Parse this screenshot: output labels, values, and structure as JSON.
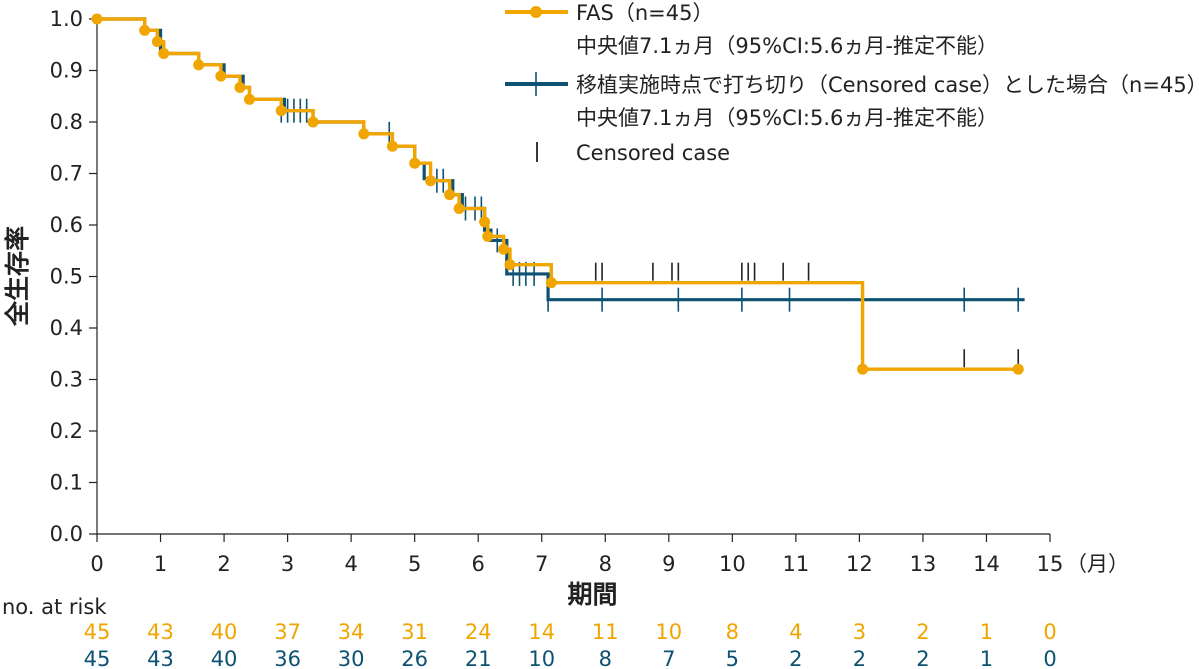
{
  "chart_data": {
    "type": "line",
    "title": "",
    "xlabel": "期間",
    "xunit": "（月）",
    "ylabel": "全生存率",
    "xlim": [
      0,
      15
    ],
    "ylim": [
      0,
      1.0
    ],
    "x_ticks": [
      0,
      1,
      2,
      3,
      4,
      5,
      6,
      7,
      8,
      9,
      10,
      11,
      12,
      13,
      14,
      15
    ],
    "x_tick_labels": [
      "0",
      "1",
      "2",
      "3",
      "4",
      "5",
      "6",
      "7",
      "8",
      "9",
      "10",
      "11",
      "12",
      "13",
      "14",
      "15"
    ],
    "y_ticks": [
      0,
      0.1,
      0.2,
      0.3,
      0.4,
      0.5,
      0.6,
      0.7,
      0.8,
      0.9,
      1.0
    ],
    "y_tick_labels": [
      "0.0",
      "0.1",
      "0.2",
      "0.3",
      "0.4",
      "0.5",
      "0.6",
      "0.7",
      "0.8",
      "0.9",
      "1.0"
    ],
    "grid": false,
    "legend_position": "top-right",
    "series": [
      {
        "name": "FAS（n=45）",
        "note": "中央値7.1ヵ月（95%CI:5.6ヵ月-推定不能）",
        "color": "#f0a500",
        "marker": "circle",
        "steps": [
          [
            0,
            1.0
          ],
          [
            0.75,
            0.978
          ],
          [
            0.95,
            0.956
          ],
          [
            1.05,
            0.933
          ],
          [
            1.6,
            0.911
          ],
          [
            1.95,
            0.889
          ],
          [
            2.25,
            0.867
          ],
          [
            2.4,
            0.844
          ],
          [
            2.9,
            0.822
          ],
          [
            3.4,
            0.8
          ],
          [
            4.2,
            0.777
          ],
          [
            4.65,
            0.753
          ],
          [
            5.0,
            0.72
          ],
          [
            5.25,
            0.686
          ],
          [
            5.55,
            0.659
          ],
          [
            5.7,
            0.632
          ],
          [
            6.1,
            0.606
          ],
          [
            6.15,
            0.578
          ],
          [
            6.4,
            0.553
          ],
          [
            6.5,
            0.523
          ],
          [
            7.15,
            0.488
          ],
          [
            12.05,
            0.32
          ],
          [
            14.5,
            0.32
          ]
        ],
        "markers_x": [
          0,
          0.75,
          0.95,
          1.05,
          1.6,
          1.95,
          2.25,
          2.4,
          2.9,
          3.4,
          4.2,
          4.65,
          5.0,
          5.25,
          5.55,
          5.7,
          6.1,
          6.15,
          6.4,
          6.5,
          7.15,
          12.05,
          14.5
        ],
        "censors": [
          {
            "x": 7.85,
            "y": 0.488
          },
          {
            "x": 7.95,
            "y": 0.488
          },
          {
            "x": 8.75,
            "y": 0.488
          },
          {
            "x": 9.05,
            "y": 0.488
          },
          {
            "x": 9.15,
            "y": 0.488
          },
          {
            "x": 10.15,
            "y": 0.488
          },
          {
            "x": 10.25,
            "y": 0.488
          },
          {
            "x": 10.35,
            "y": 0.488
          },
          {
            "x": 10.8,
            "y": 0.488
          },
          {
            "x": 11.2,
            "y": 0.488
          },
          {
            "x": 13.65,
            "y": 0.32
          },
          {
            "x": 14.5,
            "y": 0.32
          }
        ]
      },
      {
        "name": "移植実施時点で打ち切り（Censored case）とした場合（n=45）",
        "note": "中央値7.1ヵ月（95%CI:5.6ヵ月-推定不能）",
        "color": "#0e5273",
        "marker": "cross",
        "steps": [
          [
            0,
            1.0
          ],
          [
            0.75,
            0.978
          ],
          [
            1.0,
            0.933
          ],
          [
            1.6,
            0.911
          ],
          [
            2.0,
            0.889
          ],
          [
            2.3,
            0.867
          ],
          [
            2.4,
            0.844
          ],
          [
            2.95,
            0.822
          ],
          [
            3.4,
            0.8
          ],
          [
            4.2,
            0.777
          ],
          [
            4.65,
            0.753
          ],
          [
            5.0,
            0.72
          ],
          [
            5.15,
            0.69
          ],
          [
            5.25,
            0.686
          ],
          [
            5.6,
            0.659
          ],
          [
            5.75,
            0.632
          ],
          [
            6.1,
            0.59
          ],
          [
            6.2,
            0.57
          ],
          [
            6.45,
            0.505
          ],
          [
            7.1,
            0.455
          ],
          [
            14.6,
            0.455
          ]
        ],
        "censors": [
          {
            "x": 2.9,
            "y": 0.822
          },
          {
            "x": 3.0,
            "y": 0.822
          },
          {
            "x": 3.1,
            "y": 0.822
          },
          {
            "x": 3.2,
            "y": 0.822
          },
          {
            "x": 3.3,
            "y": 0.822
          },
          {
            "x": 4.6,
            "y": 0.777
          },
          {
            "x": 5.35,
            "y": 0.686
          },
          {
            "x": 5.45,
            "y": 0.686
          },
          {
            "x": 5.8,
            "y": 0.632
          },
          {
            "x": 5.95,
            "y": 0.632
          },
          {
            "x": 6.05,
            "y": 0.632
          },
          {
            "x": 6.3,
            "y": 0.57
          },
          {
            "x": 6.55,
            "y": 0.505
          },
          {
            "x": 6.65,
            "y": 0.505
          },
          {
            "x": 6.75,
            "y": 0.505
          },
          {
            "x": 6.88,
            "y": 0.505
          },
          {
            "x": 7.1,
            "y": 0.455
          },
          {
            "x": 7.95,
            "y": 0.455
          },
          {
            "x": 9.15,
            "y": 0.455
          },
          {
            "x": 10.15,
            "y": 0.455
          },
          {
            "x": 10.9,
            "y": 0.455
          },
          {
            "x": 13.65,
            "y": 0.455
          },
          {
            "x": 14.5,
            "y": 0.455
          }
        ]
      }
    ],
    "legend_censored_label": "Censored case",
    "risk_table": {
      "title": "no. at risk",
      "times": [
        0,
        1,
        2,
        3,
        4,
        5,
        6,
        7,
        8,
        9,
        10,
        11,
        12,
        13,
        14,
        15
      ],
      "rows": [
        {
          "color": "#f0a500",
          "values": [
            "45",
            "43",
            "40",
            "37",
            "34",
            "31",
            "24",
            "14",
            "11",
            "10",
            "8",
            "4",
            "3",
            "2",
            "1",
            "0"
          ]
        },
        {
          "color": "#0e5273",
          "values": [
            "45",
            "43",
            "40",
            "36",
            "30",
            "26",
            "21",
            "10",
            "8",
            "7",
            "5",
            "2",
            "2",
            "2",
            "1",
            "0"
          ]
        }
      ]
    }
  }
}
